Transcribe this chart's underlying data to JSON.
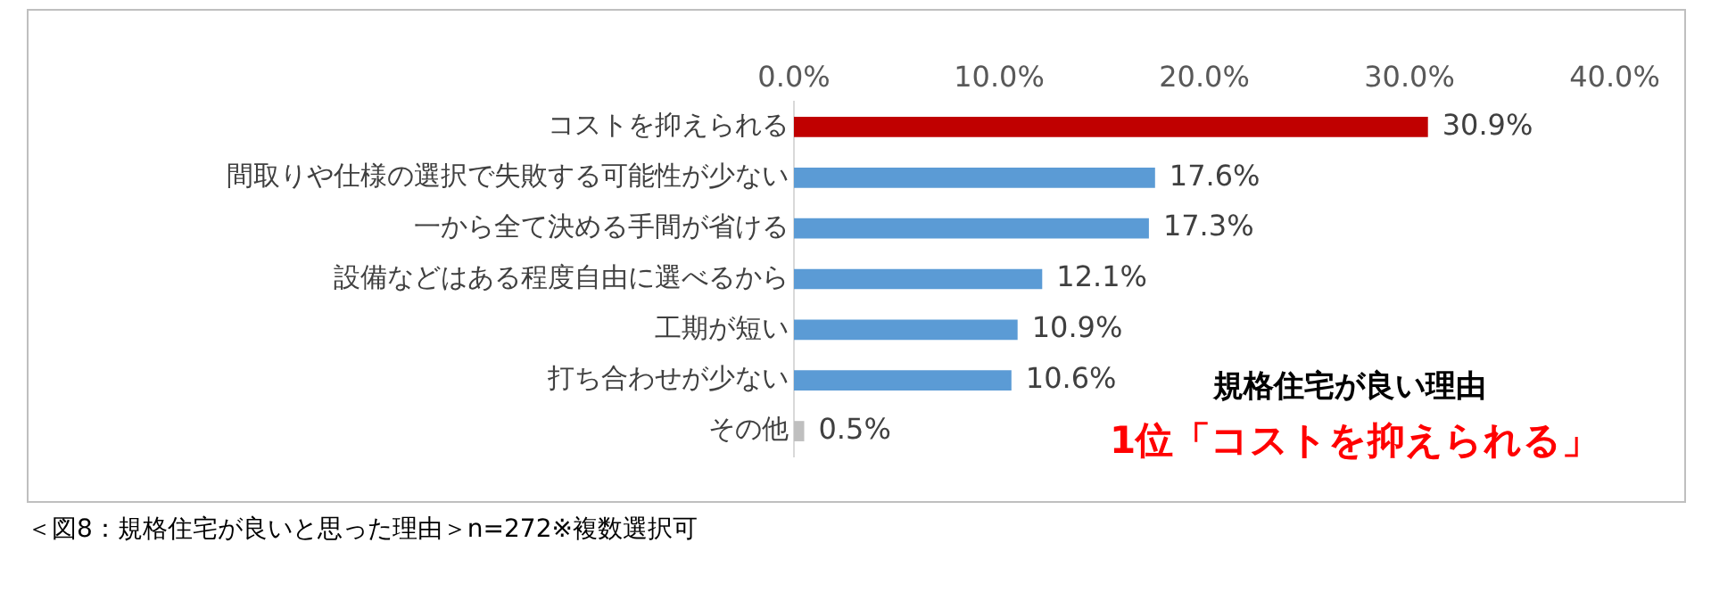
{
  "chart_data": {
    "type": "bar",
    "orientation": "horizontal",
    "categories": [
      "コストを抑えられる",
      "間取りや仕様の選択で失敗する可能性が少ない",
      "一から全て決める手間が省ける",
      "設備などはある程度自由に選べるから",
      "工期が短い",
      "打ち合わせが少ない",
      "その他"
    ],
    "values": [
      30.9,
      17.6,
      17.3,
      12.1,
      10.9,
      10.6,
      0.5
    ],
    "colors": [
      "#c00000",
      "#5b9bd5",
      "#5b9bd5",
      "#5b9bd5",
      "#5b9bd5",
      "#5b9bd5",
      "#bfbfbf"
    ],
    "value_labels": [
      "30.9%",
      "17.6%",
      "17.3%",
      "12.1%",
      "10.9%",
      "10.6%",
      "0.5%"
    ],
    "xlim": [
      0,
      40
    ],
    "xticks": [
      {
        "value": 0,
        "label": "0.0%"
      },
      {
        "value": 10,
        "label": "10.0%"
      },
      {
        "value": 20,
        "label": "20.0%"
      },
      {
        "value": 30,
        "label": "30.0%"
      },
      {
        "value": 40,
        "label": "40.0%"
      }
    ],
    "grid": false,
    "legend": false,
    "annotations": [
      "規格住宅が良い理由",
      "1位「コストを抑えられる」",
      "＜図8：規格住宅が良いと思った理由＞n=272※複数選択可"
    ]
  }
}
